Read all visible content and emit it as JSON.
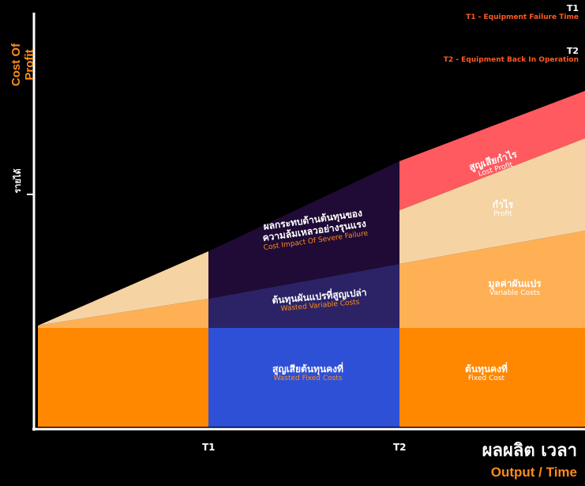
{
  "legend": [
    {
      "key": "T1",
      "text": "T1 - Equipment Failure Time"
    },
    {
      "key": "T2",
      "text": "T2 - Equipment Back In Operation"
    }
  ],
  "yaxis": {
    "title": "Cost Of Profit",
    "tick": "รายได้"
  },
  "xaxis": {
    "title_th": "ผลผลิต เวลา",
    "title_en": "Output / Time",
    "t1": "T1",
    "t2": "T2"
  },
  "regions": {
    "lost_profit": {
      "th": "สูญเสียกำไร",
      "en": "Lost Profit"
    },
    "profit": {
      "th": "กำไร",
      "en": "Profit"
    },
    "variable_costs": {
      "th": "มูลค่าผันแปร",
      "en": "Variable Costs"
    },
    "severe_impact": {
      "th1": "ผลกระทบด้านต้นทุนของ",
      "th2": "ความล้มเหลวอย่างรุนแรง",
      "en": "Cost Impact Of Severe Failure"
    },
    "wasted_variable": {
      "th": "ต้นทุนผันแปรที่สูญเปล่า",
      "en": "Wasted Variable Costs"
    },
    "wasted_fixed": {
      "th": "สูญเสียต้นทุนคงที่",
      "en": "Wasted Fixed Costs"
    },
    "fixed_cost": {
      "th": "ต้นทุนคงที่",
      "en": "Fixed Cost"
    }
  },
  "colors": {
    "fixed": "#ff8800",
    "variable": "#ffb055",
    "profit": "#f6d3a3",
    "lost": "#ff5a5f",
    "severe": "#1f0b35",
    "wasted_variable": "#2b2366",
    "wasted_fixed": "#2d50d6"
  }
}
